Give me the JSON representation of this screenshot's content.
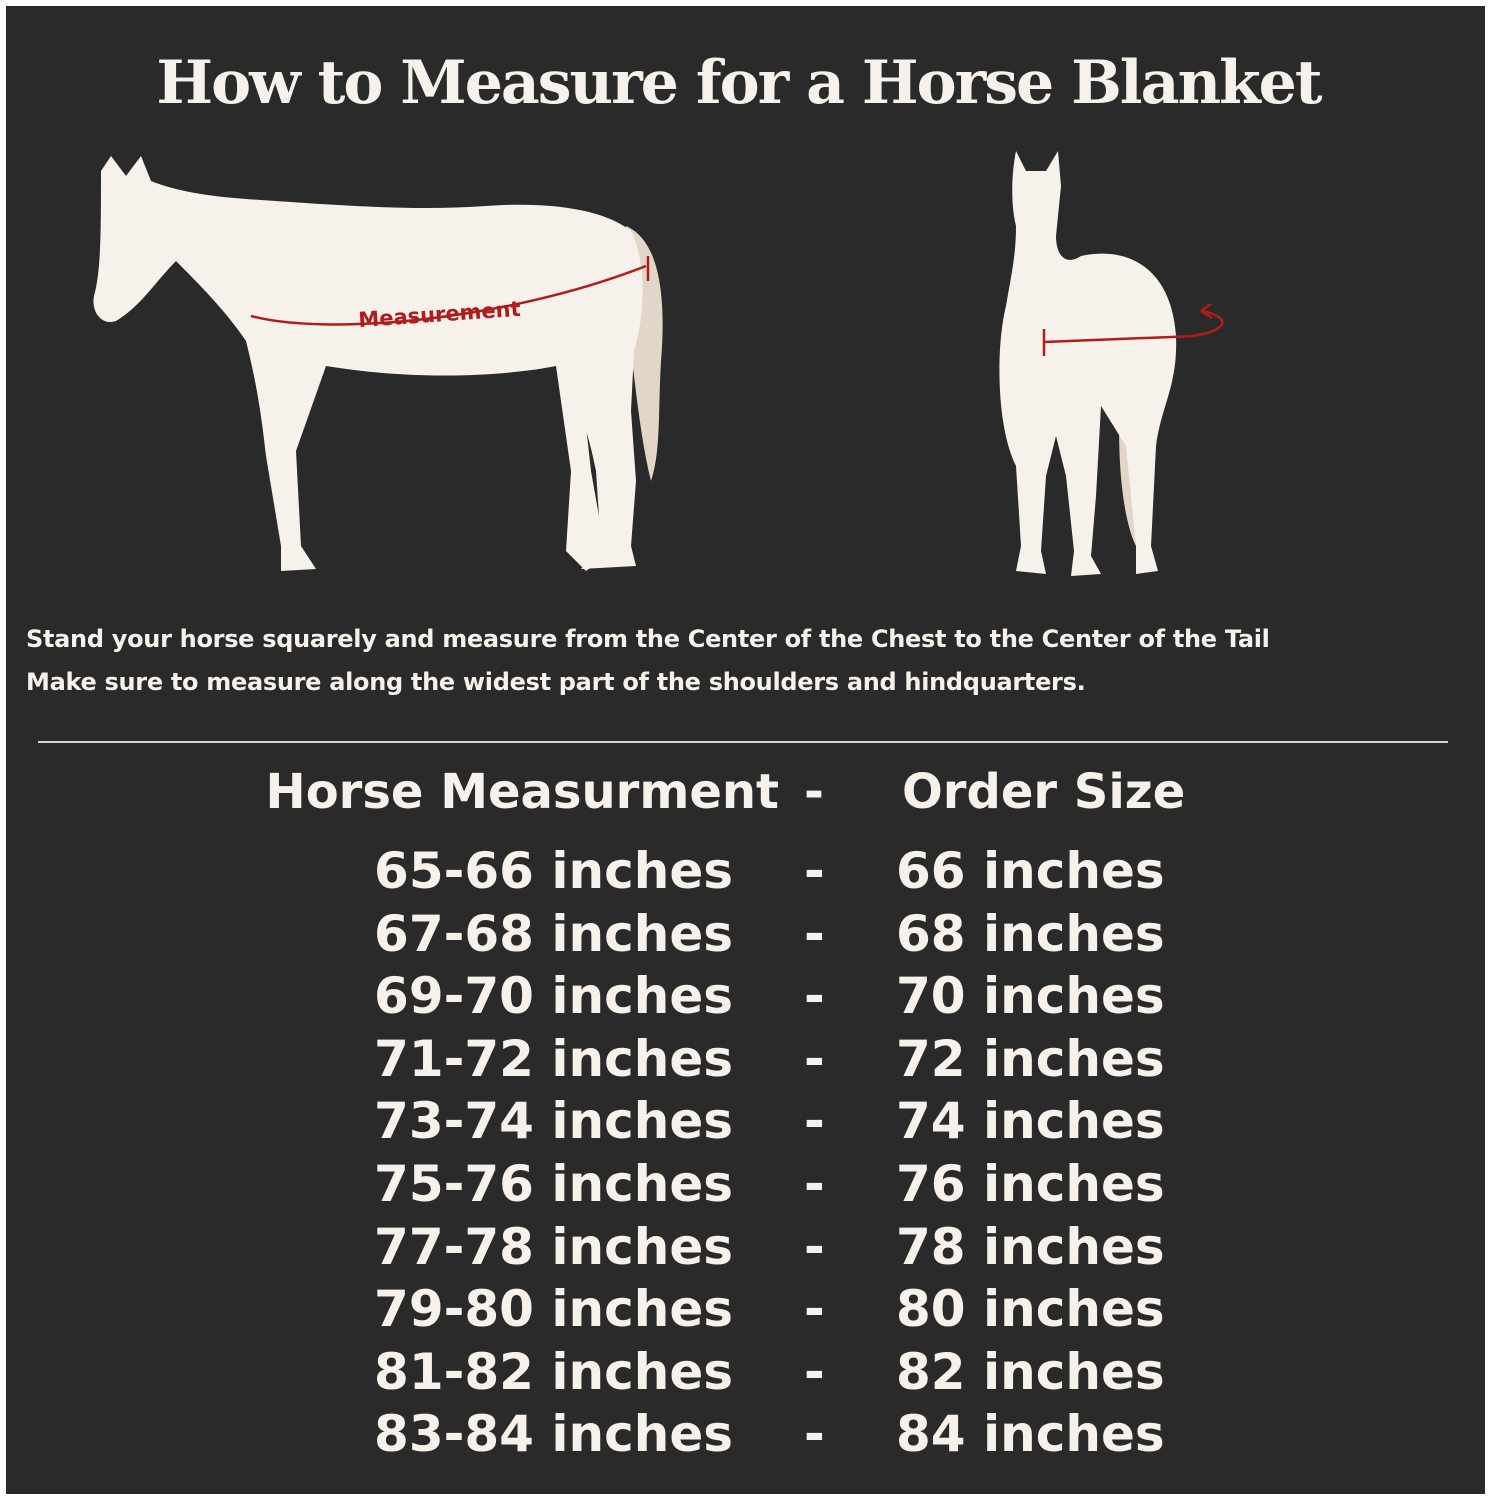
{
  "title": "How to Measure for a Horse Blanket",
  "diagram_label": "Measurement",
  "instructions": [
    "Stand your horse squarely and measure from the Center of the Chest to the Center of the Tail",
    "Make sure to measure along the widest part of the shoulders and hindquarters."
  ],
  "table": {
    "header": {
      "measurement": "Horse Measurment",
      "separator": "-",
      "size": "Order Size"
    },
    "rows": [
      {
        "measurement": "65-66 inches",
        "separator": "-",
        "size": "66 inches"
      },
      {
        "measurement": "67-68 inches",
        "separator": "-",
        "size": "68 inches"
      },
      {
        "measurement": "69-70 inches",
        "separator": "-",
        "size": "70 inches"
      },
      {
        "measurement": "71-72 inches",
        "separator": "-",
        "size": "72 inches"
      },
      {
        "measurement": "73-74 inches",
        "separator": "-",
        "size": "74 inches"
      },
      {
        "measurement": "75-76 inches",
        "separator": "-",
        "size": "76 inches"
      },
      {
        "measurement": "77-78 inches",
        "separator": "-",
        "size": "78 inches"
      },
      {
        "measurement": "79-80 inches",
        "separator": "-",
        "size": "80 inches"
      },
      {
        "measurement": "81-82 inches",
        "separator": "-",
        "size": "82 inches"
      },
      {
        "measurement": "83-84 inches",
        "separator": "-",
        "size": "84 inches"
      }
    ]
  },
  "colors": {
    "background": "#2b2a2a",
    "text": "#f6f1ea",
    "accent": "#b01c1c",
    "tail": "#e2d6c8"
  }
}
